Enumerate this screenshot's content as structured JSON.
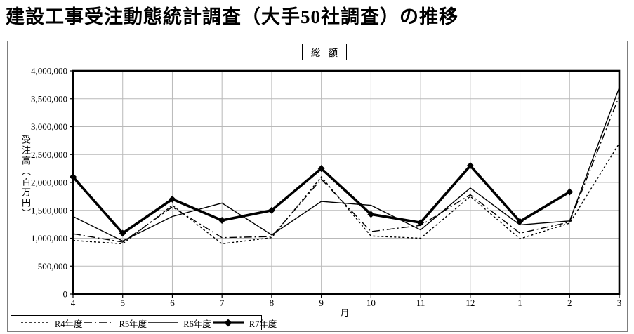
{
  "page": {
    "title": "建設工事受注動態統計調査（大手50社調査）の推移"
  },
  "chart_data": {
    "type": "line",
    "panel_label": "総 額",
    "xlabel": "月",
    "ylabel": "受注高（百万円）",
    "categories": [
      "4",
      "5",
      "6",
      "7",
      "8",
      "9",
      "10",
      "11",
      "12",
      "1",
      "2",
      "3"
    ],
    "ylim": [
      0,
      4000000
    ],
    "y_tick_step": 500000,
    "grid": true,
    "legend_position": "bottom-left",
    "line_color": "#000000",
    "grid_color": "#b9b9b9",
    "series": [
      {
        "name": "R4年度",
        "style": "dotted",
        "values": [
          960000,
          900000,
          1590000,
          900000,
          1010000,
          2100000,
          1040000,
          1000000,
          1750000,
          990000,
          1270000,
          2700000
        ]
      },
      {
        "name": "R5年度",
        "style": "dashdot",
        "values": [
          1080000,
          930000,
          1560000,
          1010000,
          1030000,
          2060000,
          1120000,
          1230000,
          1780000,
          1090000,
          1290000,
          3550000
        ]
      },
      {
        "name": "R6年度",
        "style": "solid-thin",
        "values": [
          1390000,
          950000,
          1390000,
          1630000,
          1060000,
          1660000,
          1590000,
          1150000,
          1900000,
          1240000,
          1310000,
          3700000
        ]
      },
      {
        "name": "R7年度",
        "style": "solid-thick-diamond",
        "values": [
          2100000,
          1090000,
          1700000,
          1320000,
          1500000,
          2250000,
          1430000,
          1280000,
          2300000,
          1300000,
          1830000,
          null
        ]
      }
    ]
  }
}
